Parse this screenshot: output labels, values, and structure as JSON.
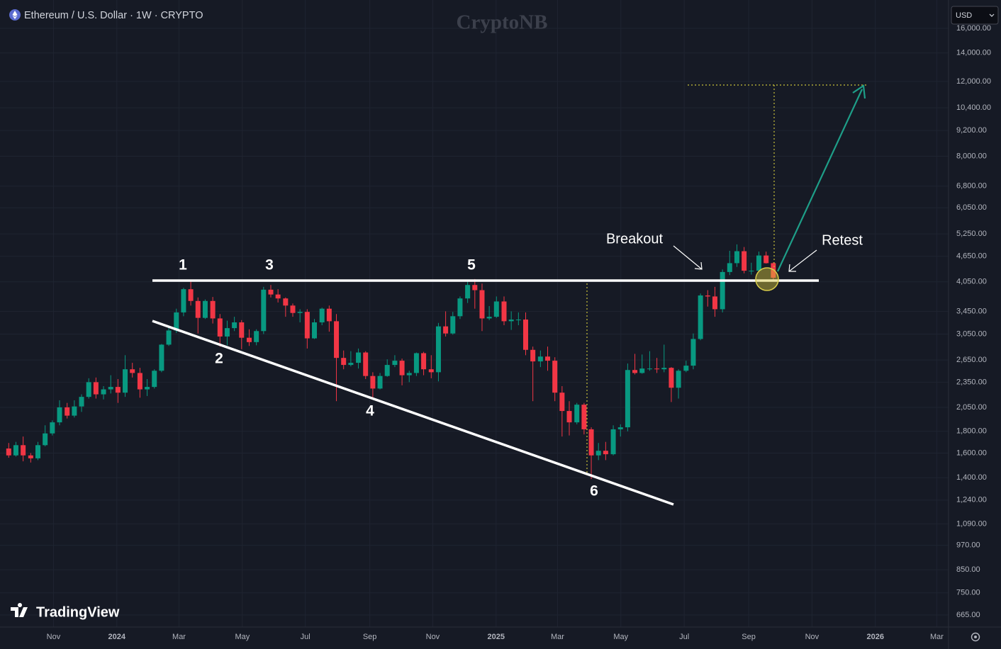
{
  "chart_data": {
    "type": "candlestick",
    "title": "Ethereum / U.S. Dollar · 1W · CRYPTO",
    "watermark": "CryptoNB",
    "log_scale": true,
    "grid": true,
    "up_color": "#089981",
    "down_color": "#f23645",
    "xlim": [
      2023.692,
      2026.193
    ],
    "xticks": [
      {
        "value": 2023.833,
        "label": "Nov"
      },
      2024,
      {
        "value": 2024.164,
        "label": "Mar"
      },
      {
        "value": 2024.331,
        "label": "May"
      },
      {
        "value": 2024.497,
        "label": "Jul"
      },
      {
        "value": 2024.667,
        "label": "Sep"
      },
      {
        "value": 2024.833,
        "label": "Nov"
      },
      2025,
      {
        "value": 2025.162,
        "label": "Mar"
      },
      {
        "value": 2025.329,
        "label": "May"
      },
      {
        "value": 2025.496,
        "label": "Jul"
      },
      {
        "value": 2025.666,
        "label": "Sep"
      },
      {
        "value": 2025.833,
        "label": "Nov"
      },
      2026,
      {
        "value": 2026.162,
        "label": "Mar"
      }
    ],
    "ylim": [
      623,
      18660
    ],
    "yticks": [
      {
        "value": 665,
        "label": "665.00"
      },
      {
        "value": 750,
        "label": "750.00"
      },
      {
        "value": 850,
        "label": "850.00"
      },
      {
        "value": 970,
        "label": "970.00"
      },
      {
        "value": 1090,
        "label": "1,090.00"
      },
      {
        "value": 1240,
        "label": "1,240.00"
      },
      {
        "value": 1400,
        "label": "1,400.00"
      },
      {
        "value": 1600,
        "label": "1,600.00"
      },
      {
        "value": 1800,
        "label": "1,800.00"
      },
      {
        "value": 2050,
        "label": "2,050.00"
      },
      {
        "value": 2350,
        "label": "2,350.00"
      },
      {
        "value": 2650,
        "label": "2,650.00"
      },
      {
        "value": 3050,
        "label": "3,050.00"
      },
      {
        "value": 3450,
        "label": "3,450.00"
      },
      {
        "value": 4050,
        "label": "4,050.00"
      },
      {
        "value": 4650,
        "label": "4,650.00"
      },
      {
        "value": 5250,
        "label": "5,250.00"
      },
      {
        "value": 6050,
        "label": "6,050.00"
      },
      {
        "value": 6800,
        "label": "6,800.00"
      },
      {
        "value": 8000,
        "label": "8,000.00"
      },
      {
        "value": 9200,
        "label": "9,200.00"
      },
      {
        "value": 10400,
        "label": "10,400.00"
      },
      {
        "value": 12000,
        "label": "12,000.00"
      },
      {
        "value": 14000,
        "label": "14,000.00"
      },
      {
        "value": 16000,
        "label": "16,000.00"
      }
    ],
    "x": [
      2023.715,
      2023.734,
      2023.753,
      2023.773,
      2023.792,
      2023.811,
      2023.83,
      2023.849,
      2023.869,
      2023.888,
      2023.907,
      2023.926,
      2023.945,
      2023.965,
      2023.984,
      2024.003,
      2024.022,
      2024.041,
      2024.061,
      2024.08,
      2024.099,
      2024.118,
      2024.137,
      2024.157,
      2024.176,
      2024.195,
      2024.214,
      2024.233,
      2024.253,
      2024.272,
      2024.291,
      2024.31,
      2024.329,
      2024.349,
      2024.368,
      2024.387,
      2024.406,
      2024.425,
      2024.445,
      2024.464,
      2024.483,
      2024.502,
      2024.521,
      2024.541,
      2024.56,
      2024.579,
      2024.598,
      2024.617,
      2024.637,
      2024.656,
      2024.675,
      2024.694,
      2024.713,
      2024.733,
      2024.752,
      2024.771,
      2024.79,
      2024.809,
      2024.829,
      2024.848,
      2024.867,
      2024.886,
      2024.905,
      2024.925,
      2024.944,
      2024.963,
      2024.982,
      2025.001,
      2025.021,
      2025.04,
      2025.059,
      2025.078,
      2025.097,
      2025.117,
      2025.136,
      2025.155,
      2025.174,
      2025.193,
      2025.213,
      2025.232,
      2025.251,
      2025.27,
      2025.289,
      2025.309,
      2025.328,
      2025.347,
      2025.366,
      2025.385,
      2025.405,
      2025.424,
      2025.443,
      2025.462,
      2025.481,
      2025.501,
      2025.52,
      2025.539,
      2025.558,
      2025.577,
      2025.597,
      2025.616,
      2025.635,
      2025.654,
      2025.673,
      2025.693,
      2025.712,
      2025.731
    ],
    "open": [
      1640,
      1580,
      1670,
      1580,
      1555,
      1670,
      1780,
      1890,
      2050,
      1960,
      2060,
      2170,
      2350,
      2200,
      2260,
      2290,
      2220,
      2520,
      2470,
      2260,
      2290,
      2500,
      2880,
      3110,
      3430,
      3890,
      3650,
      3330,
      3650,
      3320,
      3010,
      3150,
      3250,
      2990,
      2920,
      3100,
      3880,
      3780,
      3700,
      3560,
      3420,
      3440,
      2980,
      3250,
      3500,
      3270,
      2680,
      2580,
      2610,
      2760,
      2430,
      2270,
      2430,
      2580,
      2640,
      2440,
      2470,
      2750,
      2520,
      2480,
      3180,
      3060,
      3360,
      3700,
      3980,
      3870,
      3320,
      3350,
      3640,
      3270,
      3300,
      3300,
      2800,
      2630,
      2700,
      2640,
      2220,
      2010,
      1890,
      2080,
      1820,
      1580,
      1620,
      1590,
      1820,
      1840,
      2510,
      2470,
      2530,
      2530,
      2520,
      2540,
      2280,
      2500,
      2570,
      2970,
      3760,
      3740,
      3490,
      4270,
      4480,
      4780,
      4300,
      4300,
      4670,
      4480
    ],
    "high": [
      1690,
      1700,
      1750,
      1600,
      1700,
      1860,
      1910,
      2130,
      2100,
      2130,
      2200,
      2400,
      2410,
      2300,
      2440,
      2390,
      2720,
      2610,
      2540,
      2390,
      2520,
      2890,
      3170,
      3500,
      3920,
      4090,
      3720,
      3680,
      3730,
      3400,
      3280,
      3350,
      3290,
      3130,
      3130,
      3940,
      3980,
      3890,
      3720,
      3600,
      3490,
      3490,
      3310,
      3520,
      3560,
      3400,
      2790,
      2780,
      2820,
      2780,
      2480,
      2470,
      2660,
      2720,
      2670,
      2500,
      2760,
      2770,
      2720,
      3240,
      3450,
      3440,
      3740,
      4090,
      4110,
      4010,
      3550,
      3740,
      3740,
      3450,
      3430,
      3430,
      2850,
      2790,
      2850,
      2690,
      2300,
      2120,
      2100,
      2100,
      1840,
      1690,
      1700,
      1860,
      1870,
      2600,
      2740,
      2730,
      2780,
      2680,
      2880,
      2550,
      2520,
      2640,
      3060,
      3800,
      3870,
      3940,
      4330,
      4790,
      4960,
      4890,
      4490,
      4770,
      4770,
      4500
    ],
    "low": [
      1560,
      1570,
      1530,
      1520,
      1540,
      1660,
      1760,
      1860,
      1930,
      1940,
      2000,
      2150,
      2150,
      2140,
      2210,
      2100,
      2170,
      2410,
      2160,
      2180,
      2270,
      2480,
      2860,
      3070,
      3360,
      3560,
      3060,
      3310,
      3230,
      2850,
      2870,
      3100,
      2810,
      2860,
      2870,
      3050,
      3720,
      3620,
      3350,
      3350,
      3250,
      2820,
      2970,
      3200,
      3090,
      2120,
      2520,
      2560,
      2530,
      2390,
      2150,
      2260,
      2420,
      2550,
      2310,
      2350,
      2430,
      2440,
      2400,
      2360,
      3010,
      3040,
      3310,
      3610,
      3500,
      3100,
      3290,
      3330,
      3200,
      3120,
      3200,
      2720,
      2120,
      2550,
      2500,
      2120,
      1750,
      1760,
      1870,
      1770,
      1390,
      1540,
      1540,
      1580,
      1750,
      1800,
      2450,
      2460,
      2500,
      2470,
      2480,
      2110,
      2150,
      2480,
      2520,
      2950,
      3540,
      3350,
      3430,
      4200,
      4390,
      4240,
      4210,
      4270,
      4470,
      4080
    ],
    "close": [
      1580,
      1670,
      1580,
      1555,
      1670,
      1780,
      1890,
      2050,
      1960,
      2060,
      2170,
      2350,
      2200,
      2260,
      2290,
      2220,
      2520,
      2470,
      2260,
      2290,
      2500,
      2880,
      3110,
      3430,
      3890,
      3650,
      3330,
      3650,
      3320,
      3010,
      3150,
      3250,
      2990,
      2920,
      3100,
      3880,
      3780,
      3700,
      3560,
      3420,
      3440,
      2980,
      3250,
      3500,
      3270,
      2680,
      2580,
      2610,
      2760,
      2430,
      2270,
      2430,
      2580,
      2640,
      2440,
      2470,
      2750,
      2520,
      2480,
      3180,
      3060,
      3360,
      3700,
      3980,
      3870,
      3320,
      3350,
      3640,
      3270,
      3300,
      3300,
      2800,
      2630,
      2700,
      2640,
      2220,
      2010,
      1890,
      2080,
      1820,
      1580,
      1620,
      1590,
      1820,
      1840,
      2510,
      2470,
      2530,
      2530,
      2520,
      2540,
      2280,
      2500,
      2570,
      2970,
      3760,
      3740,
      3490,
      4270,
      4480,
      4780,
      4300,
      4300,
      4670,
      4480,
      4140
    ],
    "annotations": [
      "1",
      "3",
      "5",
      "2",
      "4",
      "6",
      "Breakout",
      "Retest"
    ]
  },
  "ui": {
    "currency": "USD",
    "brand": "TradingView"
  }
}
